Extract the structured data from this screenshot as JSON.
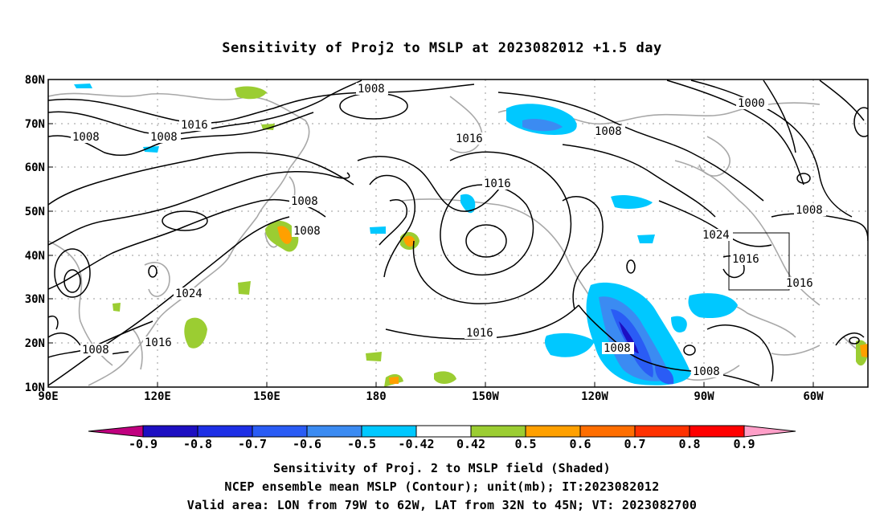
{
  "title": "Sensitivity of Proj2 to MSLP at 2023082012 +1.5 day",
  "axes": {
    "lat_labels": [
      "80N",
      "70N",
      "60N",
      "50N",
      "40N",
      "30N",
      "20N",
      "10N"
    ],
    "lon_labels": [
      "90E",
      "120E",
      "150E",
      "180",
      "150W",
      "120W",
      "90W",
      "60W"
    ]
  },
  "contour_labels": [
    "1008",
    "1016",
    "1008",
    "1008",
    "1016",
    "1008",
    "1008",
    "1008",
    "1016",
    "1024",
    "1008",
    "1016",
    "1016",
    "1000",
    "1008",
    "1024",
    "1016",
    "1016",
    "1008",
    "1008"
  ],
  "colorbar": {
    "ticks": [
      "-0.9",
      "-0.8",
      "-0.7",
      "-0.6",
      "-0.5",
      "-0.42",
      "0.42",
      "0.5",
      "0.6",
      "0.7",
      "0.8",
      "0.9"
    ],
    "colors": [
      "#c0007f",
      "#1d0fc2",
      "#1d2fe6",
      "#2a5cf5",
      "#3b8bf2",
      "#00c8ff",
      "#ffffff",
      "#9bcd32",
      "#ffa000",
      "#ff6e00",
      "#ff3200",
      "#ff0000",
      "#ff9fc8"
    ]
  },
  "captions": [
    "Sensitivity of Proj. 2 to MSLP field (Shaded)",
    "NCEP ensemble mean MSLP (Contour); unit(mb); IT:2023082012",
    "Valid area: LON from 79W to 62W, LAT from 32N to 45N; VT: 2023082700"
  ]
}
